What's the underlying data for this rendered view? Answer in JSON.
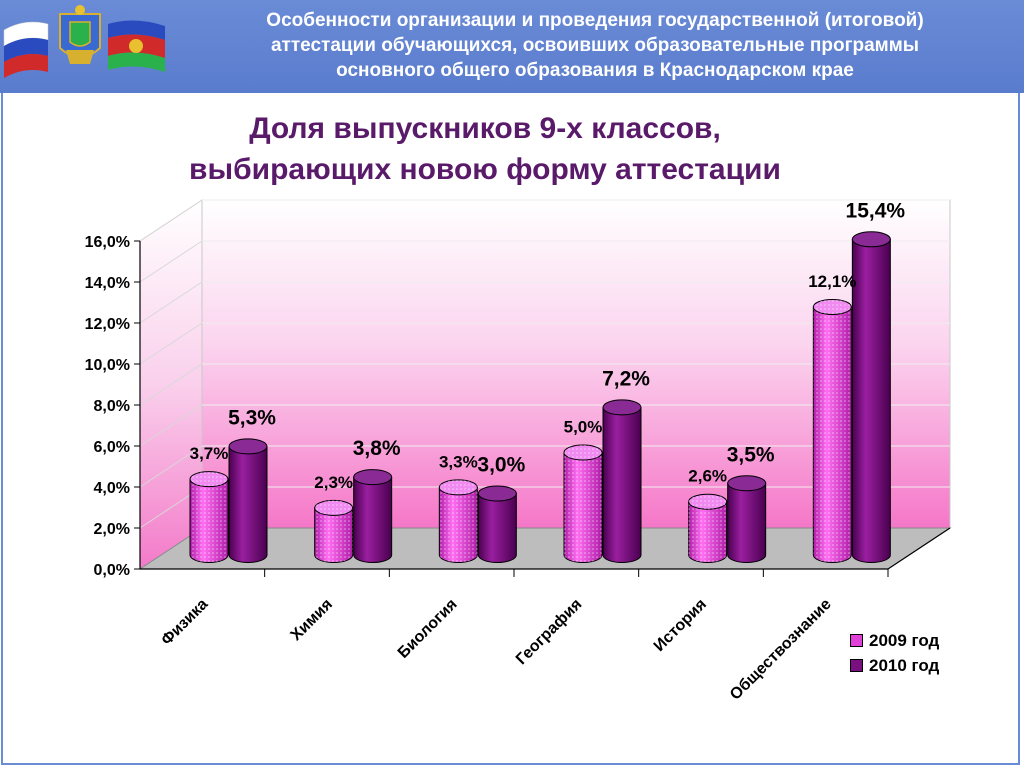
{
  "header": {
    "title": "Особенности организации и проведения государственной (итоговой)\nаттестации обучающихся, освоивших образовательные программы\nосновного общего образования в Краснодарском крае"
  },
  "colors": {
    "header_bg": "#6a8bd6",
    "title_text": "#5a1a6a",
    "series_2009": "#e040d8",
    "series_2010": "#7a0f80",
    "wall_pink": "#f580cc",
    "floor_gray": "#b8b8b8"
  },
  "chart_data": {
    "type": "bar",
    "title": "Доля выпускников 9-х классов,\nвыбирающих новою форму аттестации",
    "categories": [
      "Физика",
      "Химия",
      "Биология",
      "География",
      "История",
      "Обществознание"
    ],
    "series": [
      {
        "name": "2009 год",
        "values": [
          3.7,
          2.3,
          3.3,
          5.0,
          2.6,
          12.1
        ],
        "labels": [
          "3,7%",
          "2,3%",
          "3,3%",
          "5,0%",
          "2,6%",
          "12,1%"
        ]
      },
      {
        "name": "2010 год",
        "values": [
          5.3,
          3.8,
          3.0,
          7.2,
          3.5,
          15.4
        ],
        "labels": [
          "5,3%",
          "3,8%",
          "3,0%",
          "7,2%",
          "3,5%",
          "15,4%"
        ]
      }
    ],
    "y_ticks": [
      "0,0%",
      "2,0%",
      "4,0%",
      "6,0%",
      "8,0%",
      "10,0%",
      "12,0%",
      "14,0%",
      "16,0%"
    ],
    "ylim": [
      0,
      16
    ],
    "y_unit": "%",
    "grid": true,
    "legend_position": "bottom-right",
    "style": "3d-cylinder"
  }
}
